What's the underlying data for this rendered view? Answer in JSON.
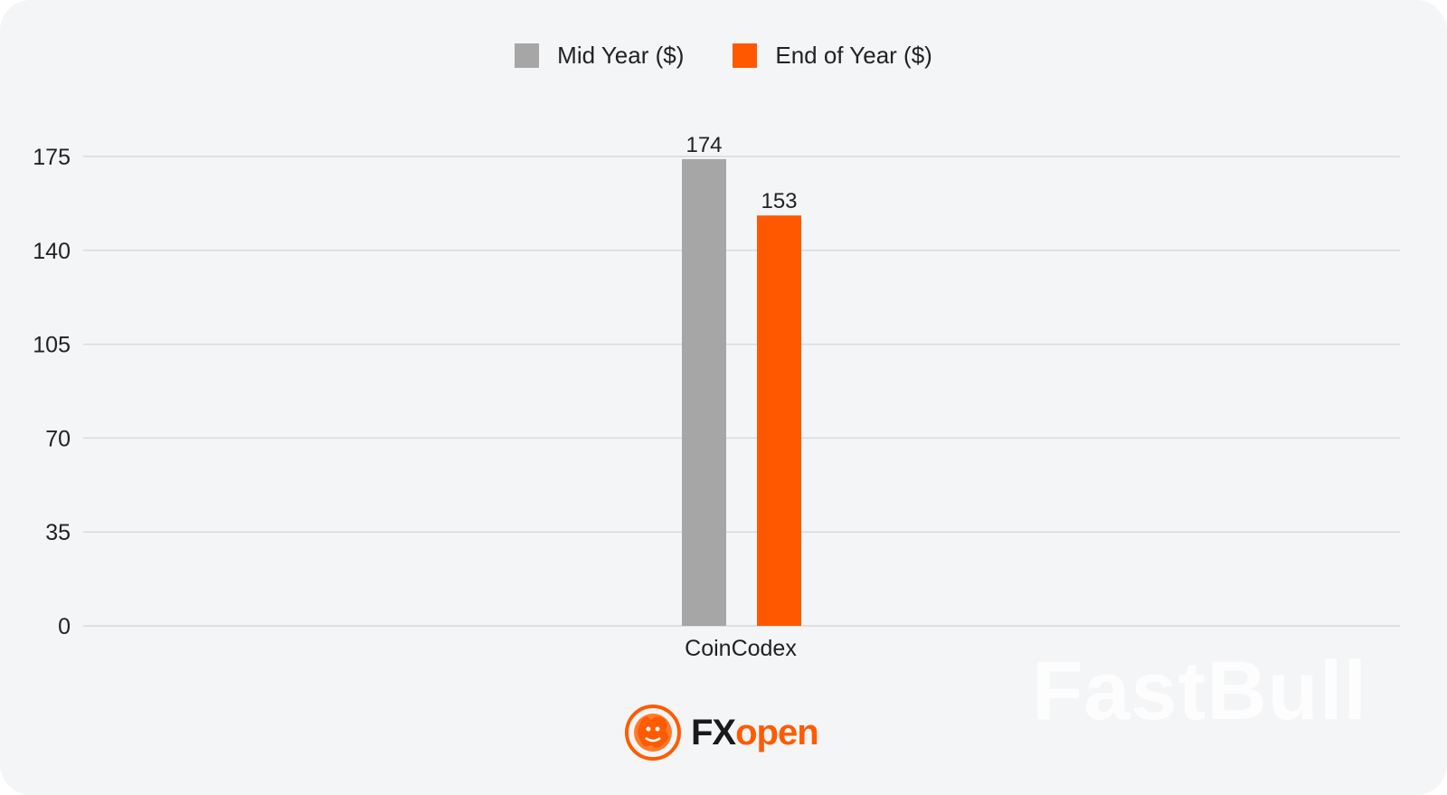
{
  "colors": {
    "background": "#f4f5f7",
    "grid": "#d9dadc",
    "mid_year": "#a6a6a6",
    "end_of_year": "#ff5800",
    "brand_orange": "#ff5b00"
  },
  "branding": {
    "logo_fx": "FX",
    "logo_open": "open",
    "watermark": "FastBull",
    "logo_icon": "bull-emblem-icon"
  },
  "chart_data": {
    "type": "bar",
    "categories": [
      "CoinCodex"
    ],
    "series": [
      {
        "name": "Mid Year ($)",
        "values": [
          174
        ],
        "color": "#a6a6a6"
      },
      {
        "name": "End of Year ($)",
        "values": [
          153
        ],
        "color": "#ff5800"
      }
    ],
    "yticks": [
      0,
      35,
      70,
      105,
      140,
      175
    ],
    "ylim": [
      0,
      175
    ],
    "grid": true,
    "legend": "top-center",
    "data_labels": true
  }
}
